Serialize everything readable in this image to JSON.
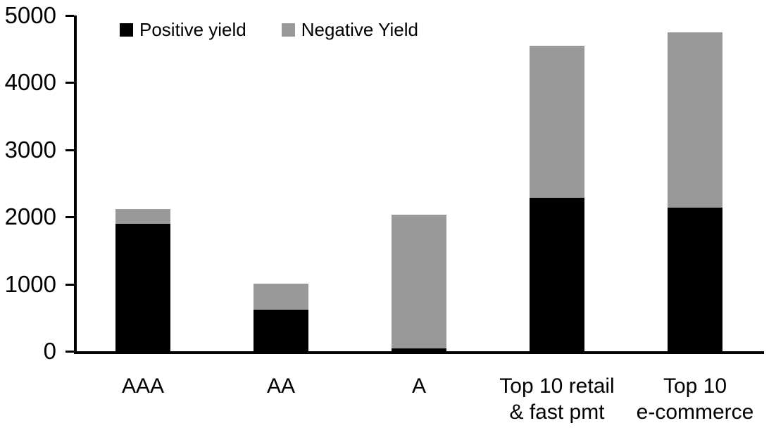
{
  "chart_data": {
    "type": "bar",
    "stacked": true,
    "title": "",
    "xlabel": "",
    "ylabel": "",
    "categories": [
      "AAA",
      "AA",
      "A",
      "Top 10 retail\n& fast pmt",
      "Top 10\ne-commerce"
    ],
    "series": [
      {
        "name": "Positive yield",
        "color": "#000000",
        "values": [
          1900,
          620,
          45,
          2280,
          2140
        ]
      },
      {
        "name": "Negative Yield",
        "color": "#999999",
        "values": [
          220,
          385,
          1985,
          2270,
          2610
        ]
      }
    ],
    "totals": [
      2120,
      1005,
      2030,
      4550,
      4750
    ],
    "ylim": [
      0,
      5000
    ],
    "yticks": [
      0,
      1000,
      2000,
      3000,
      4000,
      5000
    ],
    "grid": false,
    "legend_position": "top"
  },
  "colors": {
    "positive": "#000000",
    "negative": "#999999",
    "axis": "#000000",
    "background": "#ffffff"
  }
}
